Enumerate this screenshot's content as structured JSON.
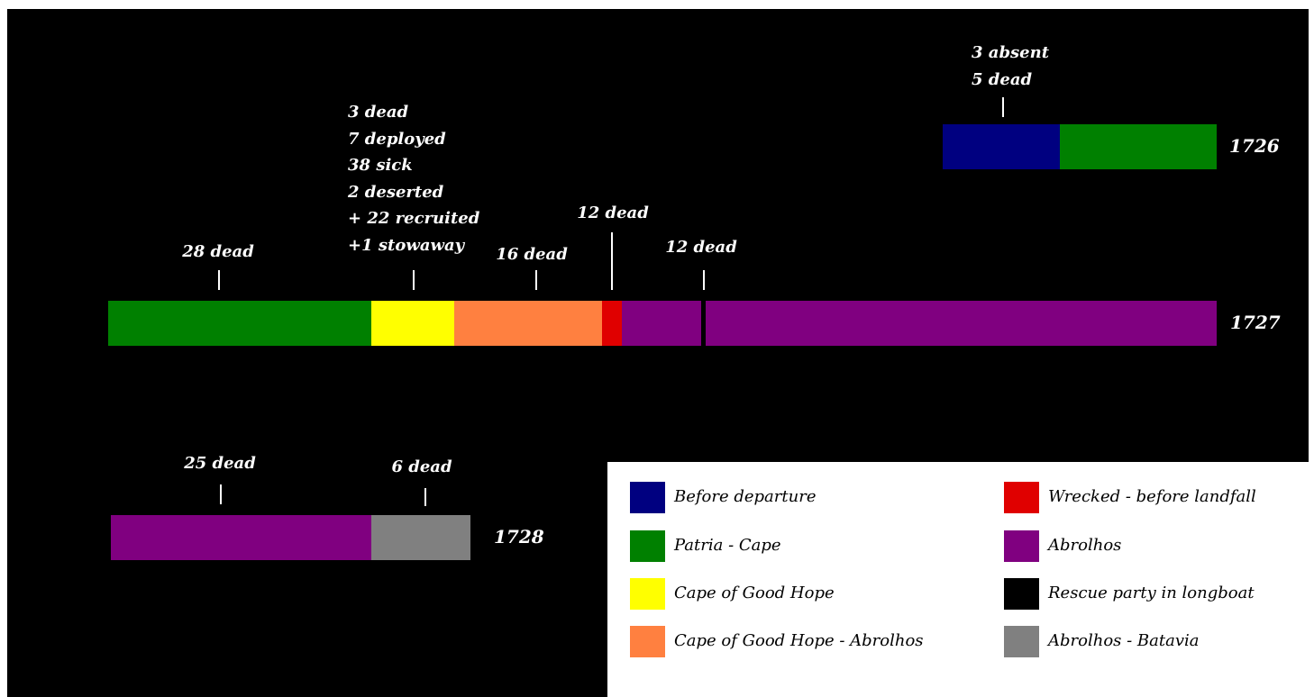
{
  "rows": [
    {
      "year": "1726",
      "segments": [
        {
          "category": "Before departure",
          "color": "#000080"
        },
        {
          "category": "Patria - Cape",
          "color": "#008000"
        }
      ],
      "annotations": [
        {
          "lines": [
            "3 absent",
            "5 dead"
          ]
        }
      ]
    },
    {
      "year": "1727",
      "segments": [
        {
          "category": "Patria - Cape",
          "color": "#008000"
        },
        {
          "category": "Cape of Good Hope",
          "color": "#ffff00"
        },
        {
          "category": "Cape of Good Hope - Abrolhos",
          "color": "#ff8040"
        },
        {
          "category": "Wrecked - before landfall",
          "color": "#e00000"
        },
        {
          "category": "Abrolhos",
          "color": "#800080"
        },
        {
          "category": "Abrolhos",
          "color": "#800080"
        }
      ],
      "annotations": [
        {
          "lines": [
            "28 dead"
          ]
        },
        {
          "lines": [
            "3 dead",
            "7 deployed",
            "38 sick",
            "2 deserted",
            "+ 22 recruited",
            "+1 stowaway"
          ]
        },
        {
          "lines": [
            "16 dead"
          ]
        },
        {
          "lines": [
            "12 dead"
          ]
        },
        {
          "lines": [
            "12 dead"
          ]
        }
      ]
    },
    {
      "year": "1728",
      "segments": [
        {
          "category": "Abrolhos",
          "color": "#800080"
        },
        {
          "category": "Abrolhos - Batavia",
          "color": "#808080"
        }
      ],
      "annotations": [
        {
          "lines": [
            "25 dead"
          ]
        },
        {
          "lines": [
            "6 dead"
          ]
        }
      ]
    }
  ],
  "legend": [
    {
      "label": "Before departure",
      "color": "#000080"
    },
    {
      "label": "Patria - Cape",
      "color": "#008000"
    },
    {
      "label": "Cape of Good Hope",
      "color": "#ffff00"
    },
    {
      "label": "Cape of Good Hope - Abrolhos",
      "color": "#ff8040"
    },
    {
      "label": "Wrecked - before landfall",
      "color": "#e00000"
    },
    {
      "label": "Abrolhos",
      "color": "#800080"
    },
    {
      "label": "Rescue party in longboat",
      "color": "#000000"
    },
    {
      "label": "Abrolhos - Batavia",
      "color": "#808080"
    }
  ]
}
